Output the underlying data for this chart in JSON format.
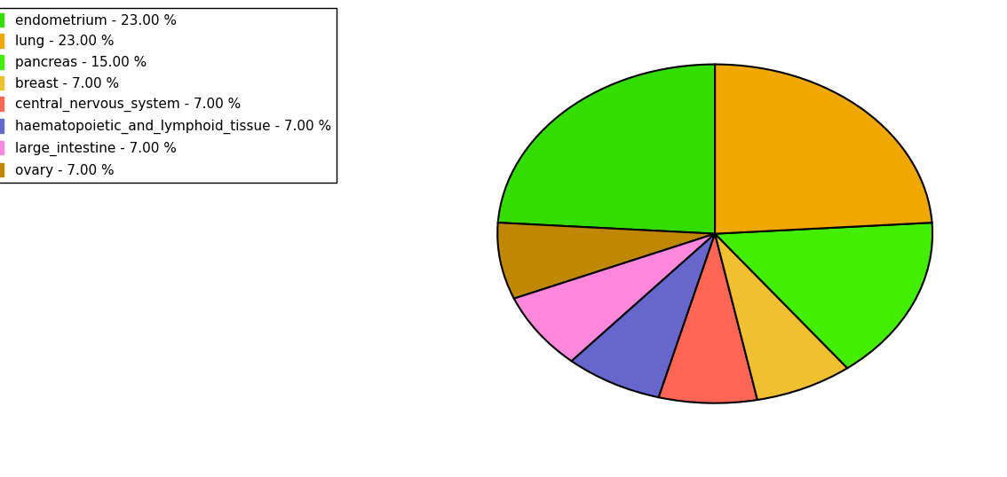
{
  "labels": [
    "endometrium",
    "ovary",
    "large_intestine",
    "haematopoietic_and_lymphoid_tissue",
    "central_nervous_system",
    "breast",
    "pancreas",
    "lung"
  ],
  "values": [
    23,
    7,
    7,
    7,
    7,
    7,
    15,
    23
  ],
  "colors": [
    "#33dd00",
    "#c08800",
    "#ff88dd",
    "#6666cc",
    "#ff6655",
    "#f0c030",
    "#44ee00",
    "#f0a800"
  ],
  "legend_labels": [
    "endometrium - 23.00 %",
    "lung - 23.00 %",
    "pancreas - 15.00 %",
    "breast - 7.00 %",
    "central_nervous_system - 7.00 %",
    "haematopoietic_and_lymphoid_tissue - 7.00 %",
    "large_intestine - 7.00 %",
    "ovary - 7.00 %"
  ],
  "legend_colors": [
    "#33dd00",
    "#f0a800",
    "#44ee00",
    "#f0c030",
    "#ff6655",
    "#6666cc",
    "#ff88dd",
    "#c08800"
  ],
  "startangle": 90,
  "figsize": [
    11.34,
    5.38
  ],
  "dpi": 100,
  "aspect": 0.78
}
